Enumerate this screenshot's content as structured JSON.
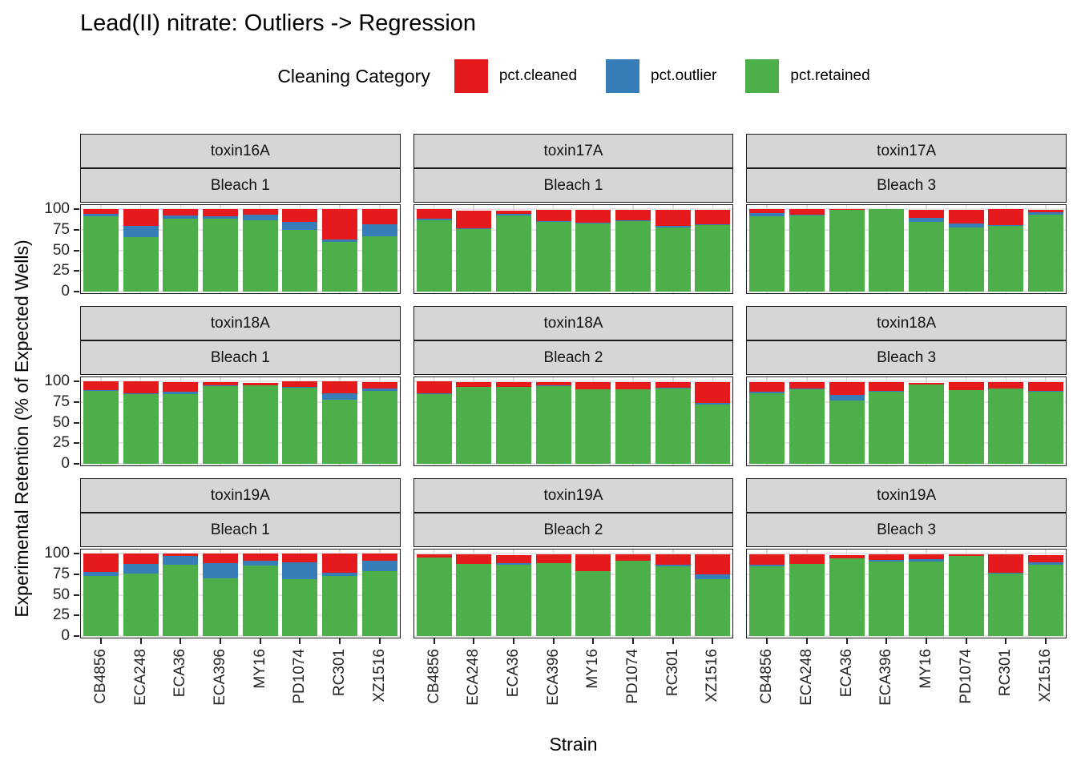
{
  "chart_data": {
    "type": "bar",
    "stacked": true,
    "title": "Lead(II) nitrate: Outliers -> Regression",
    "legend_title": "Cleaning Category",
    "legend_position": "top",
    "xlabel": "Strain",
    "ylabel": "Experimental Retention (% of Expected Wells)",
    "ylim": [
      0,
      100
    ],
    "grid": true,
    "y_ticks": [
      100,
      75,
      50,
      25,
      0
    ],
    "y_tick_labels": [
      "100",
      "75",
      "50",
      "25",
      "0"
    ],
    "categories": [
      "CB4856",
      "ECA248",
      "ECA36",
      "ECA396",
      "MY16",
      "PD1074",
      "RC301",
      "XZ1516"
    ],
    "series": [
      {
        "name": "pct.cleaned",
        "color": "#E41A1C"
      },
      {
        "name": "pct.outlier",
        "color": "#377EB8"
      },
      {
        "name": "pct.retained",
        "color": "#4DAF4A"
      }
    ],
    "colors": {
      "cleaned": "#E41A1C",
      "outlier": "#377EB8",
      "retained": "#4DAF4A"
    },
    "facet_layout": {
      "rows": 3,
      "cols": 3,
      "strip_top": "toxin",
      "strip_bottom": "bleach"
    },
    "panels": [
      {
        "toxin": "toxin16A",
        "bleach": "Bleach 1",
        "retained": [
          91,
          66,
          88,
          88,
          86,
          75,
          60,
          67
        ],
        "outlier": [
          3,
          14,
          4,
          3,
          7,
          9,
          3,
          15
        ],
        "cleaned": [
          6,
          20,
          8,
          9,
          7,
          16,
          37,
          18
        ]
      },
      {
        "toxin": "toxin17A",
        "bleach": "Bleach 1",
        "retained": [
          86,
          76,
          92,
          84,
          83,
          85,
          78,
          81
        ],
        "outlier": [
          2,
          1,
          2,
          1,
          1,
          1,
          2,
          1
        ],
        "cleaned": [
          12,
          21,
          4,
          14,
          15,
          13,
          19,
          17
        ]
      },
      {
        "toxin": "toxin17A",
        "bleach": "Bleach 3",
        "retained": [
          91,
          92,
          99,
          100,
          84,
          78,
          80,
          93
        ],
        "outlier": [
          4,
          1,
          0,
          0,
          5,
          5,
          1,
          3
        ],
        "cleaned": [
          5,
          7,
          1,
          0,
          10,
          16,
          19,
          3
        ]
      },
      {
        "toxin": "toxin18A",
        "bleach": "Bleach 1",
        "retained": [
          88,
          84,
          84,
          94,
          95,
          92,
          78,
          88
        ],
        "outlier": [
          1,
          1,
          3,
          1,
          0,
          1,
          7,
          3
        ],
        "cleaned": [
          11,
          15,
          12,
          4,
          3,
          7,
          15,
          8
        ]
      },
      {
        "toxin": "toxin18A",
        "bleach": "Bleach 2",
        "retained": [
          84,
          93,
          93,
          94,
          90,
          90,
          91,
          72
        ],
        "outlier": [
          1,
          0,
          0,
          1,
          0,
          0,
          1,
          2
        ],
        "cleaned": [
          15,
          6,
          6,
          4,
          9,
          9,
          7,
          25
        ]
      },
      {
        "toxin": "toxin18A",
        "bleach": "Bleach 3",
        "retained": [
          85,
          90,
          77,
          87,
          96,
          89,
          91,
          87
        ],
        "outlier": [
          2,
          1,
          7,
          1,
          0,
          0,
          0,
          1
        ],
        "cleaned": [
          12,
          8,
          15,
          11,
          2,
          10,
          8,
          11
        ]
      },
      {
        "toxin": "toxin19A",
        "bleach": "Bleach 1",
        "retained": [
          73,
          76,
          86,
          70,
          85,
          69,
          73,
          79
        ],
        "outlier": [
          5,
          11,
          11,
          18,
          6,
          20,
          4,
          12
        ],
        "cleaned": [
          22,
          13,
          3,
          12,
          9,
          11,
          23,
          9
        ]
      },
      {
        "toxin": "toxin19A",
        "bleach": "Bleach 2",
        "retained": [
          95,
          87,
          86,
          88,
          79,
          91,
          84,
          69
        ],
        "outlier": [
          0,
          0,
          2,
          0,
          0,
          0,
          2,
          6
        ],
        "cleaned": [
          4,
          12,
          10,
          11,
          20,
          8,
          13,
          24
        ]
      },
      {
        "toxin": "toxin19A",
        "bleach": "Bleach 3",
        "retained": [
          84,
          87,
          94,
          90,
          90,
          97,
          76,
          86
        ],
        "outlier": [
          2,
          0,
          0,
          2,
          3,
          0,
          1,
          3
        ],
        "cleaned": [
          13,
          12,
          4,
          7,
          6,
          2,
          22,
          9
        ]
      }
    ]
  }
}
